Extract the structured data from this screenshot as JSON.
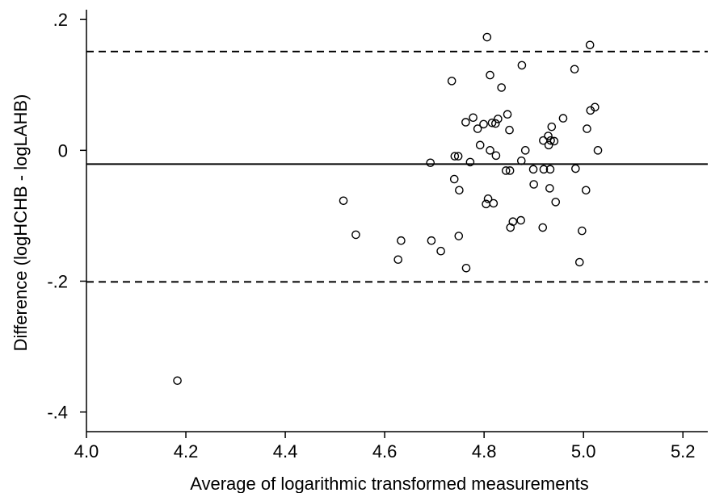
{
  "chart_data": {
    "type": "scatter",
    "title": "",
    "xlabel": "Average of logarithmic transformed measurements",
    "ylabel": "Difference (logHCHB - logLAHB)",
    "xlim": [
      4.0,
      5.25
    ],
    "ylim": [
      -0.43,
      0.215
    ],
    "x_ticks": [
      {
        "value": 4.0,
        "label": "4.0"
      },
      {
        "value": 4.2,
        "label": "4.2"
      },
      {
        "value": 4.4,
        "label": "4.4"
      },
      {
        "value": 4.6,
        "label": "4.6"
      },
      {
        "value": 4.8,
        "label": "4.8"
      },
      {
        "value": 5.0,
        "label": "5.0"
      },
      {
        "value": 5.2,
        "label": "5.2"
      }
    ],
    "y_ticks": [
      {
        "value": 0.2,
        "label": ".2"
      },
      {
        "value": 0.0,
        "label": "0"
      },
      {
        "value": -0.2,
        "label": "-.2"
      },
      {
        "value": -0.4,
        "label": "-.4"
      }
    ],
    "reference_lines": [
      {
        "value": 0.151,
        "style": "dashed"
      },
      {
        "value": -0.021,
        "style": "solid"
      },
      {
        "value": -0.201,
        "style": "dashed"
      }
    ],
    "grid": false,
    "marker": "hollow-circle",
    "points": [
      {
        "x": 4.183,
        "y": -0.352
      },
      {
        "x": 4.517,
        "y": -0.077
      },
      {
        "x": 4.542,
        "y": -0.129
      },
      {
        "x": 4.627,
        "y": -0.167
      },
      {
        "x": 4.633,
        "y": -0.138
      },
      {
        "x": 4.692,
        "y": -0.019
      },
      {
        "x": 4.694,
        "y": -0.138
      },
      {
        "x": 4.713,
        "y": -0.154
      },
      {
        "x": 4.735,
        "y": 0.106
      },
      {
        "x": 4.74,
        "y": -0.044
      },
      {
        "x": 4.741,
        "y": -0.009
      },
      {
        "x": 4.748,
        "y": -0.009
      },
      {
        "x": 4.749,
        "y": -0.131
      },
      {
        "x": 4.75,
        "y": -0.061
      },
      {
        "x": 4.763,
        "y": 0.043
      },
      {
        "x": 4.764,
        "y": -0.18
      },
      {
        "x": 4.772,
        "y": -0.018
      },
      {
        "x": 4.778,
        "y": 0.05
      },
      {
        "x": 4.787,
        "y": 0.033
      },
      {
        "x": 4.792,
        "y": 0.008
      },
      {
        "x": 4.799,
        "y": 0.04
      },
      {
        "x": 4.804,
        "y": -0.082
      },
      {
        "x": 4.806,
        "y": 0.173
      },
      {
        "x": 4.808,
        "y": -0.074
      },
      {
        "x": 4.812,
        "y": 0.115
      },
      {
        "x": 4.812,
        "y": 0.0
      },
      {
        "x": 4.816,
        "y": 0.042
      },
      {
        "x": 4.819,
        "y": -0.081
      },
      {
        "x": 4.823,
        "y": 0.041
      },
      {
        "x": 4.824,
        "y": -0.008
      },
      {
        "x": 4.828,
        "y": 0.048
      },
      {
        "x": 4.835,
        "y": 0.096
      },
      {
        "x": 4.844,
        "y": -0.031
      },
      {
        "x": 4.847,
        "y": 0.055
      },
      {
        "x": 4.851,
        "y": 0.031
      },
      {
        "x": 4.852,
        "y": -0.031
      },
      {
        "x": 4.853,
        "y": -0.118
      },
      {
        "x": 4.858,
        "y": -0.109
      },
      {
        "x": 4.874,
        "y": -0.107
      },
      {
        "x": 4.875,
        "y": -0.016
      },
      {
        "x": 4.876,
        "y": 0.13
      },
      {
        "x": 4.883,
        "y": 0.0
      },
      {
        "x": 4.899,
        "y": -0.029
      },
      {
        "x": 4.9,
        "y": -0.052
      },
      {
        "x": 4.918,
        "y": -0.118
      },
      {
        "x": 4.919,
        "y": 0.015
      },
      {
        "x": 4.92,
        "y": -0.029
      },
      {
        "x": 4.929,
        "y": 0.022
      },
      {
        "x": 4.93,
        "y": 0.008
      },
      {
        "x": 4.932,
        "y": -0.058
      },
      {
        "x": 4.933,
        "y": -0.029
      },
      {
        "x": 4.934,
        "y": 0.015
      },
      {
        "x": 4.936,
        "y": 0.036
      },
      {
        "x": 4.941,
        "y": 0.014
      },
      {
        "x": 4.944,
        "y": -0.079
      },
      {
        "x": 4.959,
        "y": 0.049
      },
      {
        "x": 4.982,
        "y": 0.124
      },
      {
        "x": 4.984,
        "y": -0.028
      },
      {
        "x": 4.992,
        "y": -0.171
      },
      {
        "x": 4.997,
        "y": -0.123
      },
      {
        "x": 5.005,
        "y": -0.061
      },
      {
        "x": 5.007,
        "y": 0.033
      },
      {
        "x": 5.013,
        "y": 0.161
      },
      {
        "x": 5.014,
        "y": 0.061
      },
      {
        "x": 5.023,
        "y": 0.066
      },
      {
        "x": 5.029,
        "y": 0.0
      }
    ]
  }
}
